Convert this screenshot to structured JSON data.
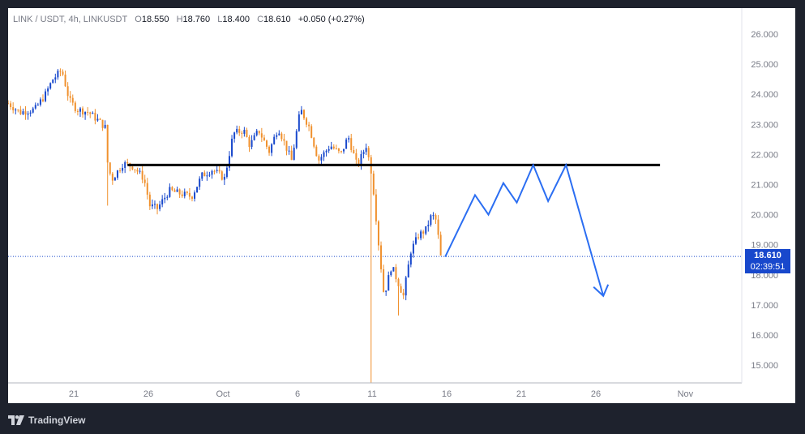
{
  "legend": {
    "symbol": "LINK / USDT, 4h, LINKUSDT",
    "o_label": "O",
    "o_value": "18.550",
    "h_label": "H",
    "h_value": "18.760",
    "l_label": "L",
    "l_value": "18.400",
    "c_label": "C",
    "c_value": "18.610",
    "change": "+0.050 (+0.27%)"
  },
  "price_box": {
    "price": "18.610",
    "countdown": "02:39:51"
  },
  "footer": {
    "brand": "TradingView"
  },
  "colors": {
    "up": "#1848cc",
    "down": "#f0912e",
    "line": "#000000",
    "projection": "#2b6ef2",
    "axis_text": "#787b86"
  },
  "chart_data": {
    "type": "candlestick",
    "timeframe": "4h",
    "ylim": [
      14.4,
      26.6
    ],
    "y_ticks": [
      "15.000",
      "16.000",
      "17.000",
      "18.000",
      "19.000",
      "20.000",
      "21.000",
      "22.000",
      "23.000",
      "24.000",
      "25.000",
      "26.000"
    ],
    "x_ticks": [
      {
        "label": "21",
        "day": 21
      },
      {
        "label": "26",
        "day": 26
      },
      {
        "label": "Oct",
        "day": 31
      },
      {
        "label": "6",
        "day": 36
      },
      {
        "label": "11",
        "day": 41
      },
      {
        "label": "16",
        "day": 46
      },
      {
        "label": "21",
        "day": 51
      },
      {
        "label": "26",
        "day": 56
      },
      {
        "label": "Nov",
        "day": 62
      }
    ],
    "last_price": 18.61,
    "price_path": [
      [
        16.6,
        23.7
      ],
      [
        17.4,
        23.4
      ],
      [
        18.4,
        23.5
      ],
      [
        19.1,
        24.0
      ],
      [
        19.6,
        24.5
      ],
      [
        20.2,
        24.8
      ],
      [
        20.7,
        23.8
      ],
      [
        21.2,
        23.5
      ],
      [
        22.0,
        23.4
      ],
      [
        22.7,
        23.1
      ],
      [
        23.1,
        22.9
      ],
      [
        23.3,
        21.5
      ],
      [
        23.6,
        21.2
      ],
      [
        24.3,
        21.7
      ],
      [
        25.0,
        21.6
      ],
      [
        25.7,
        21.2
      ],
      [
        26.1,
        20.3
      ],
      [
        26.6,
        20.2
      ],
      [
        27.4,
        20.8
      ],
      [
        28.1,
        20.7
      ],
      [
        28.9,
        20.6
      ],
      [
        29.6,
        21.3
      ],
      [
        30.3,
        21.5
      ],
      [
        31.1,
        21.2
      ],
      [
        31.7,
        22.7
      ],
      [
        32.4,
        22.8
      ],
      [
        32.8,
        22.3
      ],
      [
        33.4,
        22.8
      ],
      [
        34.1,
        22.1
      ],
      [
        34.7,
        22.9
      ],
      [
        35.6,
        21.8
      ],
      [
        36.2,
        23.5
      ],
      [
        36.8,
        22.9
      ],
      [
        37.4,
        21.8
      ],
      [
        38.2,
        22.3
      ],
      [
        38.9,
        22.0
      ],
      [
        39.4,
        22.6
      ],
      [
        40.0,
        21.6
      ],
      [
        40.6,
        22.3
      ],
      [
        41.0,
        21.3
      ],
      [
        41.4,
        19.2
      ],
      [
        41.8,
        17.3
      ],
      [
        42.3,
        18.3
      ],
      [
        42.7,
        17.8
      ],
      [
        43.1,
        17.3
      ],
      [
        43.6,
        18.8
      ],
      [
        44.1,
        19.3
      ],
      [
        44.6,
        19.5
      ],
      [
        45.0,
        20.0
      ],
      [
        45.3,
        19.8
      ],
      [
        45.6,
        18.6
      ]
    ],
    "drawings": {
      "resistance_level": 21.65,
      "resistance_from_day": 24.6,
      "resistance_to_day": 60.3,
      "projection_path": [
        [
          45.9,
          18.6
        ],
        [
          47.9,
          20.65
        ],
        [
          48.8,
          20.0
        ],
        [
          49.8,
          21.05
        ],
        [
          50.7,
          20.4
        ],
        [
          51.8,
          21.65
        ],
        [
          52.8,
          20.45
        ],
        [
          54.0,
          21.65
        ],
        [
          56.5,
          17.3
        ]
      ]
    }
  }
}
